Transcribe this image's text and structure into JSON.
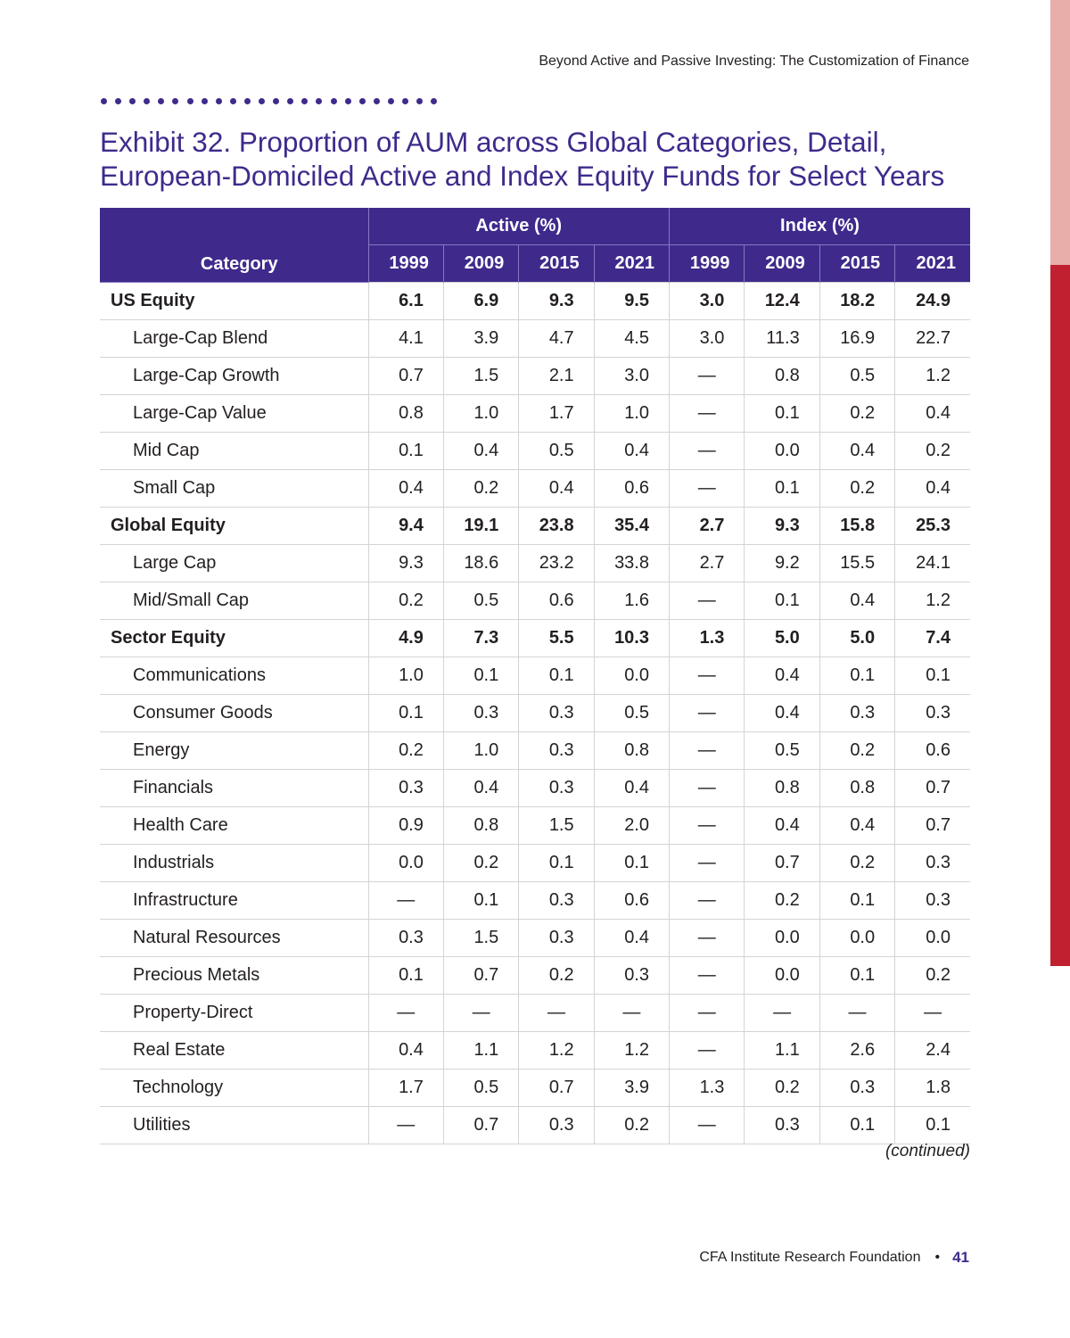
{
  "running_header": "Beyond Active and Passive Investing: The Customization of Finance",
  "exhibit": {
    "title_line1": "Exhibit 32. Proportion of AUM across Global Categories, Detail,",
    "title_line2": "European-Domiciled Active and Index Equity Funds for Select Years"
  },
  "table": {
    "category_header": "Category",
    "group_active": "Active (%)",
    "group_index": "Index (%)",
    "years": [
      "1999",
      "2009",
      "2015",
      "2021",
      "1999",
      "2009",
      "2015",
      "2021"
    ],
    "rows": [
      {
        "label": "US Equity",
        "major": true,
        "values": [
          "6.1",
          "6.9",
          "9.3",
          "9.5",
          "3.0",
          "12.4",
          "18.2",
          "24.9"
        ]
      },
      {
        "label": "Large-Cap Blend",
        "major": false,
        "values": [
          "4.1",
          "3.9",
          "4.7",
          "4.5",
          "3.0",
          "11.3",
          "16.9",
          "22.7"
        ]
      },
      {
        "label": "Large-Cap Growth",
        "major": false,
        "values": [
          "0.7",
          "1.5",
          "2.1",
          "3.0",
          "—",
          "0.8",
          "0.5",
          "1.2"
        ]
      },
      {
        "label": "Large-Cap Value",
        "major": false,
        "values": [
          "0.8",
          "1.0",
          "1.7",
          "1.0",
          "—",
          "0.1",
          "0.2",
          "0.4"
        ]
      },
      {
        "label": "Mid Cap",
        "major": false,
        "values": [
          "0.1",
          "0.4",
          "0.5",
          "0.4",
          "—",
          "0.0",
          "0.4",
          "0.2"
        ]
      },
      {
        "label": "Small Cap",
        "major": false,
        "values": [
          "0.4",
          "0.2",
          "0.4",
          "0.6",
          "—",
          "0.1",
          "0.2",
          "0.4"
        ]
      },
      {
        "label": "Global Equity",
        "major": true,
        "values": [
          "9.4",
          "19.1",
          "23.8",
          "35.4",
          "2.7",
          "9.3",
          "15.8",
          "25.3"
        ]
      },
      {
        "label": "Large Cap",
        "major": false,
        "values": [
          "9.3",
          "18.6",
          "23.2",
          "33.8",
          "2.7",
          "9.2",
          "15.5",
          "24.1"
        ]
      },
      {
        "label": "Mid/Small Cap",
        "major": false,
        "values": [
          "0.2",
          "0.5",
          "0.6",
          "1.6",
          "—",
          "0.1",
          "0.4",
          "1.2"
        ]
      },
      {
        "label": "Sector Equity",
        "major": true,
        "values": [
          "4.9",
          "7.3",
          "5.5",
          "10.3",
          "1.3",
          "5.0",
          "5.0",
          "7.4"
        ]
      },
      {
        "label": "Communications",
        "major": false,
        "values": [
          "1.0",
          "0.1",
          "0.1",
          "0.0",
          "—",
          "0.4",
          "0.1",
          "0.1"
        ]
      },
      {
        "label": "Consumer Goods",
        "major": false,
        "values": [
          "0.1",
          "0.3",
          "0.3",
          "0.5",
          "—",
          "0.4",
          "0.3",
          "0.3"
        ]
      },
      {
        "label": "Energy",
        "major": false,
        "values": [
          "0.2",
          "1.0",
          "0.3",
          "0.8",
          "—",
          "0.5",
          "0.2",
          "0.6"
        ]
      },
      {
        "label": "Financials",
        "major": false,
        "values": [
          "0.3",
          "0.4",
          "0.3",
          "0.4",
          "—",
          "0.8",
          "0.8",
          "0.7"
        ]
      },
      {
        "label": "Health Care",
        "major": false,
        "values": [
          "0.9",
          "0.8",
          "1.5",
          "2.0",
          "—",
          "0.4",
          "0.4",
          "0.7"
        ]
      },
      {
        "label": "Industrials",
        "major": false,
        "values": [
          "0.0",
          "0.2",
          "0.1",
          "0.1",
          "—",
          "0.7",
          "0.2",
          "0.3"
        ]
      },
      {
        "label": "Infrastructure",
        "major": false,
        "values": [
          "—",
          "0.1",
          "0.3",
          "0.6",
          "—",
          "0.2",
          "0.1",
          "0.3"
        ]
      },
      {
        "label": "Natural Resources",
        "major": false,
        "values": [
          "0.3",
          "1.5",
          "0.3",
          "0.4",
          "—",
          "0.0",
          "0.0",
          "0.0"
        ]
      },
      {
        "label": "Precious Metals",
        "major": false,
        "values": [
          "0.1",
          "0.7",
          "0.2",
          "0.3",
          "—",
          "0.0",
          "0.1",
          "0.2"
        ]
      },
      {
        "label": "Property-Direct",
        "major": false,
        "values": [
          "—",
          "—",
          "—",
          "—",
          "—",
          "—",
          "—",
          "—"
        ]
      },
      {
        "label": "Real Estate",
        "major": false,
        "values": [
          "0.4",
          "1.1",
          "1.2",
          "1.2",
          "—",
          "1.1",
          "2.6",
          "2.4"
        ]
      },
      {
        "label": "Technology",
        "major": false,
        "values": [
          "1.7",
          "0.5",
          "0.7",
          "3.9",
          "1.3",
          "0.2",
          "0.3",
          "1.8"
        ]
      },
      {
        "label": "Utilities",
        "major": false,
        "values": [
          "—",
          "0.7",
          "0.3",
          "0.2",
          "—",
          "0.3",
          "0.1",
          "0.1"
        ]
      }
    ]
  },
  "continued_note": "(continued)",
  "footer": {
    "publisher": "CFA Institute Research Foundation",
    "separator": "•",
    "page_number": "41"
  },
  "colors": {
    "accent": "#3f2a8c",
    "side_tab_red": "#c0202f",
    "side_tab_pink": "#e7aeaa"
  }
}
